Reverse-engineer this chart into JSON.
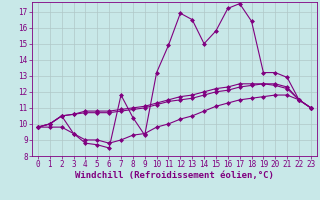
{
  "background_color": "#c8e8e8",
  "grid_color": "#b0c8c8",
  "line_color": "#800080",
  "marker": "D",
  "markersize": 2.0,
  "linewidth": 0.8,
  "xlabel": "Windchill (Refroidissement éolien,°C)",
  "xlabel_fontsize": 6.5,
  "tick_fontsize": 5.5,
  "xlim": [
    -0.5,
    23.5
  ],
  "ylim": [
    8,
    17.6
  ],
  "yticks": [
    8,
    9,
    10,
    11,
    12,
    13,
    14,
    15,
    16,
    17
  ],
  "xticks": [
    0,
    1,
    2,
    3,
    4,
    5,
    6,
    7,
    8,
    9,
    10,
    11,
    12,
    13,
    14,
    15,
    16,
    17,
    18,
    19,
    20,
    21,
    22,
    23
  ],
  "series": [
    [
      9.8,
      10.0,
      10.5,
      9.4,
      8.8,
      8.7,
      8.5,
      11.8,
      10.4,
      9.3,
      13.2,
      14.9,
      16.9,
      16.5,
      15.0,
      15.8,
      17.2,
      17.5,
      16.4,
      13.2,
      13.2,
      12.9,
      11.5,
      11.0
    ],
    [
      9.8,
      10.0,
      10.5,
      10.6,
      10.8,
      10.8,
      10.8,
      10.9,
      11.0,
      11.1,
      11.3,
      11.5,
      11.7,
      11.8,
      12.0,
      12.2,
      12.3,
      12.5,
      12.5,
      12.5,
      12.4,
      12.2,
      11.5,
      11.0
    ],
    [
      9.8,
      10.0,
      10.5,
      10.6,
      10.7,
      10.7,
      10.7,
      10.8,
      10.9,
      11.0,
      11.2,
      11.4,
      11.5,
      11.6,
      11.8,
      12.0,
      12.1,
      12.3,
      12.4,
      12.5,
      12.5,
      12.3,
      11.5,
      11.0
    ],
    [
      9.8,
      9.8,
      9.8,
      9.4,
      9.0,
      9.0,
      8.8,
      9.0,
      9.3,
      9.4,
      9.8,
      10.0,
      10.3,
      10.5,
      10.8,
      11.1,
      11.3,
      11.5,
      11.6,
      11.7,
      11.8,
      11.8,
      11.5,
      11.0
    ]
  ]
}
